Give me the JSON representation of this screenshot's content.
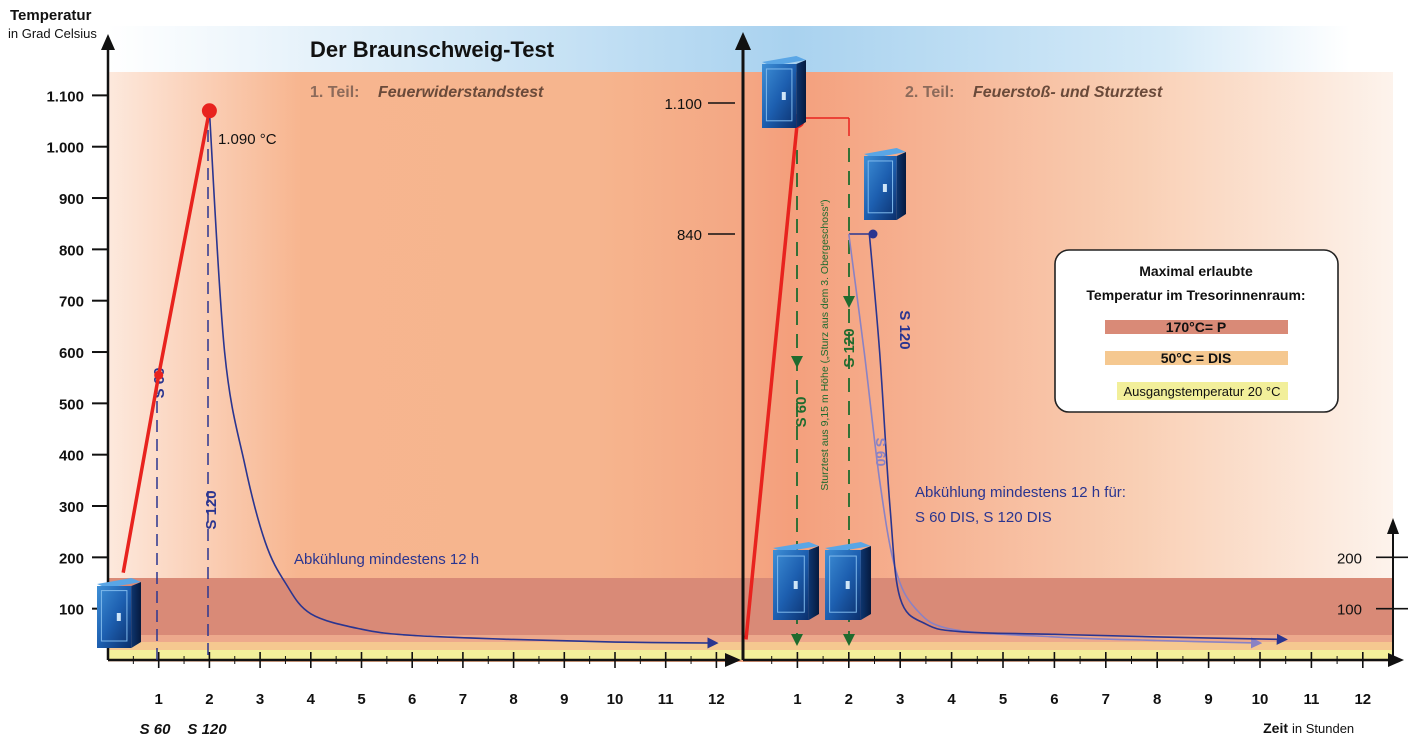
{
  "chart_data": [
    {
      "type": "line",
      "title": "Der Braunschweig-Test",
      "subtitle_prefix": "1. Teil:",
      "subtitle": "Feuerwiderstandstest",
      "ylabel": "Temperatur",
      "ylabel_unit": "in Grad Celsius",
      "y_ticks": [
        "100",
        "200",
        "300",
        "400",
        "500",
        "600",
        "700",
        "800",
        "900",
        "1.000",
        "1.100"
      ],
      "x_ticks": [
        "1",
        "2",
        "3",
        "4",
        "5",
        "6",
        "7",
        "8",
        "9",
        "10",
        "11",
        "12"
      ],
      "xlim": [
        0,
        12.5
      ],
      "ylim": [
        0,
        1100
      ],
      "series": [
        {
          "name": "",
          "color": "#e8231e",
          "x": [
            0.3,
            1.0,
            2.0
          ],
          "y": [
            170,
            555,
            1070
          ]
        },
        {
          "name": "",
          "color": "#2a3590",
          "x": [
            2.0,
            2.3,
            2.7,
            3.1,
            3.5,
            4.0,
            5.0,
            6.0,
            8.0,
            10.0,
            12.0
          ],
          "y": [
            1070,
            600,
            380,
            230,
            150,
            90,
            60,
            48,
            40,
            35,
            33
          ]
        }
      ],
      "markers": [
        {
          "x": 1.0,
          "y": 555,
          "label": "S 60"
        },
        {
          "x": 2.0,
          "y": 1070,
          "label": "S 120"
        }
      ],
      "annotations": {
        "peak": "1.090 °C",
        "cooling": "Abkühlung mindestens 12 h",
        "s60": "S 60",
        "s120": "S 120",
        "below_s60": "S 60",
        "below_s120": "S 120"
      }
    },
    {
      "type": "line",
      "subtitle_prefix": "2. Teil:",
      "subtitle": "Feuerstoß- und Sturztest",
      "xlabel": "Zeit",
      "xlabel_unit": "in Stunden",
      "y_ticks_left": [
        "840",
        "1.100"
      ],
      "y_ticks_right": [
        "100",
        "200"
      ],
      "x_ticks": [
        "1",
        "2",
        "3",
        "4",
        "5",
        "6",
        "7",
        "8",
        "9",
        "10",
        "11",
        "12"
      ],
      "xlim": [
        0,
        12.5
      ],
      "series": [
        {
          "name": "",
          "color": "#e8231e",
          "x": [
            0.0,
            1.0
          ],
          "y": [
            40,
            1050
          ]
        },
        {
          "name": "",
          "color": "#2a3590",
          "x": [
            2.4,
            2.6,
            2.8,
            3.0,
            3.5,
            4.2,
            6.0,
            8.0,
            10.5
          ],
          "y": [
            840,
            600,
            300,
            120,
            70,
            55,
            50,
            45,
            40
          ]
        },
        {
          "name": "",
          "color": "#8a82c4",
          "x": [
            2.0,
            2.3,
            2.6,
            2.9,
            3.3,
            4.0,
            6.0,
            8.0,
            10.0
          ],
          "y": [
            840,
            600,
            350,
            180,
            100,
            60,
            45,
            38,
            33
          ]
        }
      ],
      "annotations": {
        "s60_drop": "S 60",
        "s120_drop": "S 120",
        "s120_curve": "S 120",
        "s60_curve": "S 60",
        "fall_test": "Sturztest aus 9,15 m Höhe („Sturz aus dem 3. Obergeschoss“)",
        "cooling": "Abkühlung mindestens 12 h für:",
        "cooling_2": "S 60 DIS, S 120 DIS"
      }
    }
  ],
  "legend": {
    "title_1": "Maximal erlaubte",
    "title_2": "Temperatur im Tresorinnenraum:",
    "p": "170°C= P",
    "dis": "50°C = DIS",
    "start": "Ausgangstemperatur 20 °C"
  },
  "colors": {
    "red": "#e8231e",
    "navy": "#2a3590",
    "lilac": "#8a82c4",
    "green": "#1f6b2e",
    "band_p": "#d98a77",
    "band_dis": "#f5c890",
    "band_start": "#f2ef9a",
    "title_band": "#bcdcf2"
  }
}
